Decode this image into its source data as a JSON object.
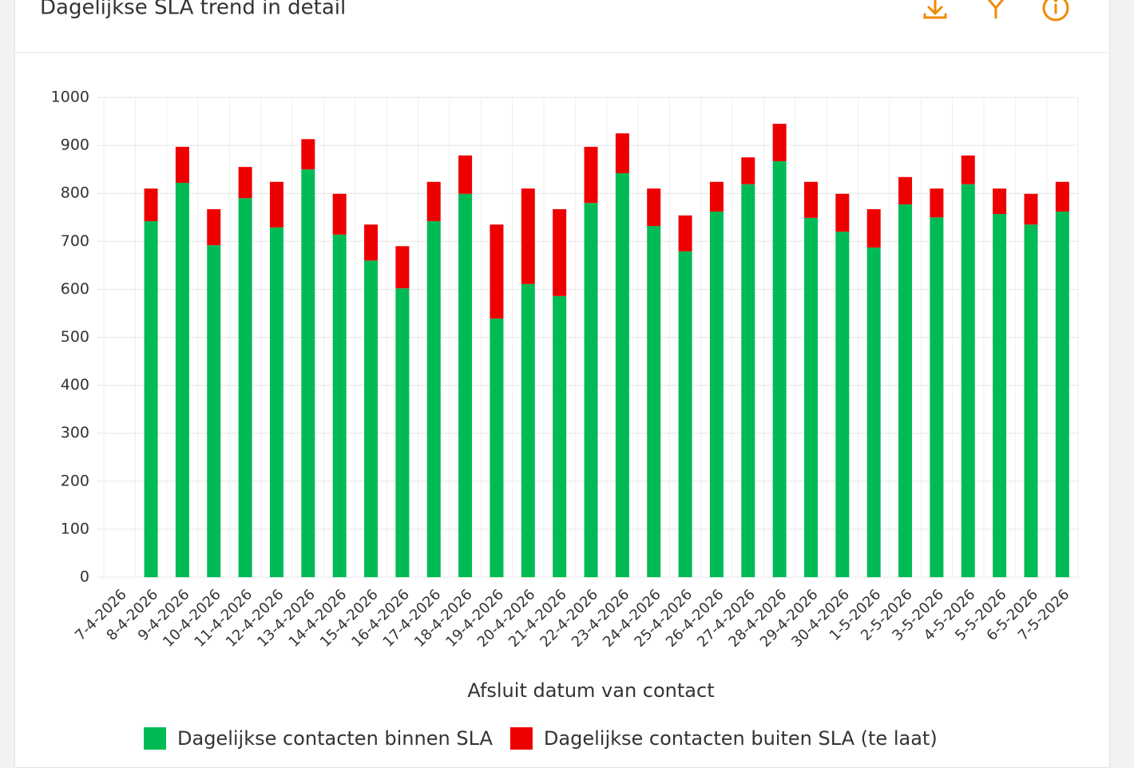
{
  "header": {
    "title": "Dagelijkse SLA trend in detail"
  },
  "chart_data": {
    "type": "stacked-bar",
    "x_label": "Afsluit datum van contact",
    "categories": [
      "7-4-2026",
      "8-4-2026",
      "9-4-2026",
      "10-4-2026",
      "11-4-2026",
      "12-4-2026",
      "13-4-2026",
      "14-4-2026",
      "15-4-2026",
      "16-4-2026",
      "17-4-2026",
      "18-4-2026",
      "19-4-2026",
      "20-4-2026",
      "21-4-2026",
      "22-4-2026",
      "23-4-2026",
      "24-4-2026",
      "25-4-2026",
      "26-4-2026",
      "27-4-2026",
      "28-4-2026",
      "29-4-2026",
      "30-4-2026",
      "1-5-2026",
      "2-5-2026",
      "3-5-2026",
      "4-5-2026",
      "5-5-2026",
      "6-5-2026",
      "7-5-2026"
    ],
    "series": [
      {
        "name": "Dagelijkse contacten binnen SLA",
        "color": "#00bb55",
        "values": [
          null,
          742,
          822,
          692,
          790,
          729,
          850,
          714,
          660,
          602,
          742,
          799,
          539,
          611,
          586,
          780,
          842,
          732,
          679,
          762,
          819,
          867,
          749,
          720,
          687,
          777,
          750,
          819,
          757,
          735,
          762
        ]
      },
      {
        "name": "Dagelijkse contacten buiten SLA (te laat)",
        "color": "#ee0000",
        "values": [
          null,
          68,
          75,
          75,
          65,
          95,
          63,
          85,
          75,
          88,
          82,
          80,
          196,
          199,
          181,
          117,
          83,
          78,
          75,
          62,
          56,
          78,
          75,
          79,
          80,
          57,
          60,
          60,
          53,
          64,
          62
        ]
      }
    ],
    "ylim": [
      0,
      1000
    ],
    "yticks": [
      0,
      100,
      200,
      300,
      400,
      500,
      600,
      700,
      800,
      900,
      1000
    ],
    "grid": true,
    "legend": "bottom"
  }
}
